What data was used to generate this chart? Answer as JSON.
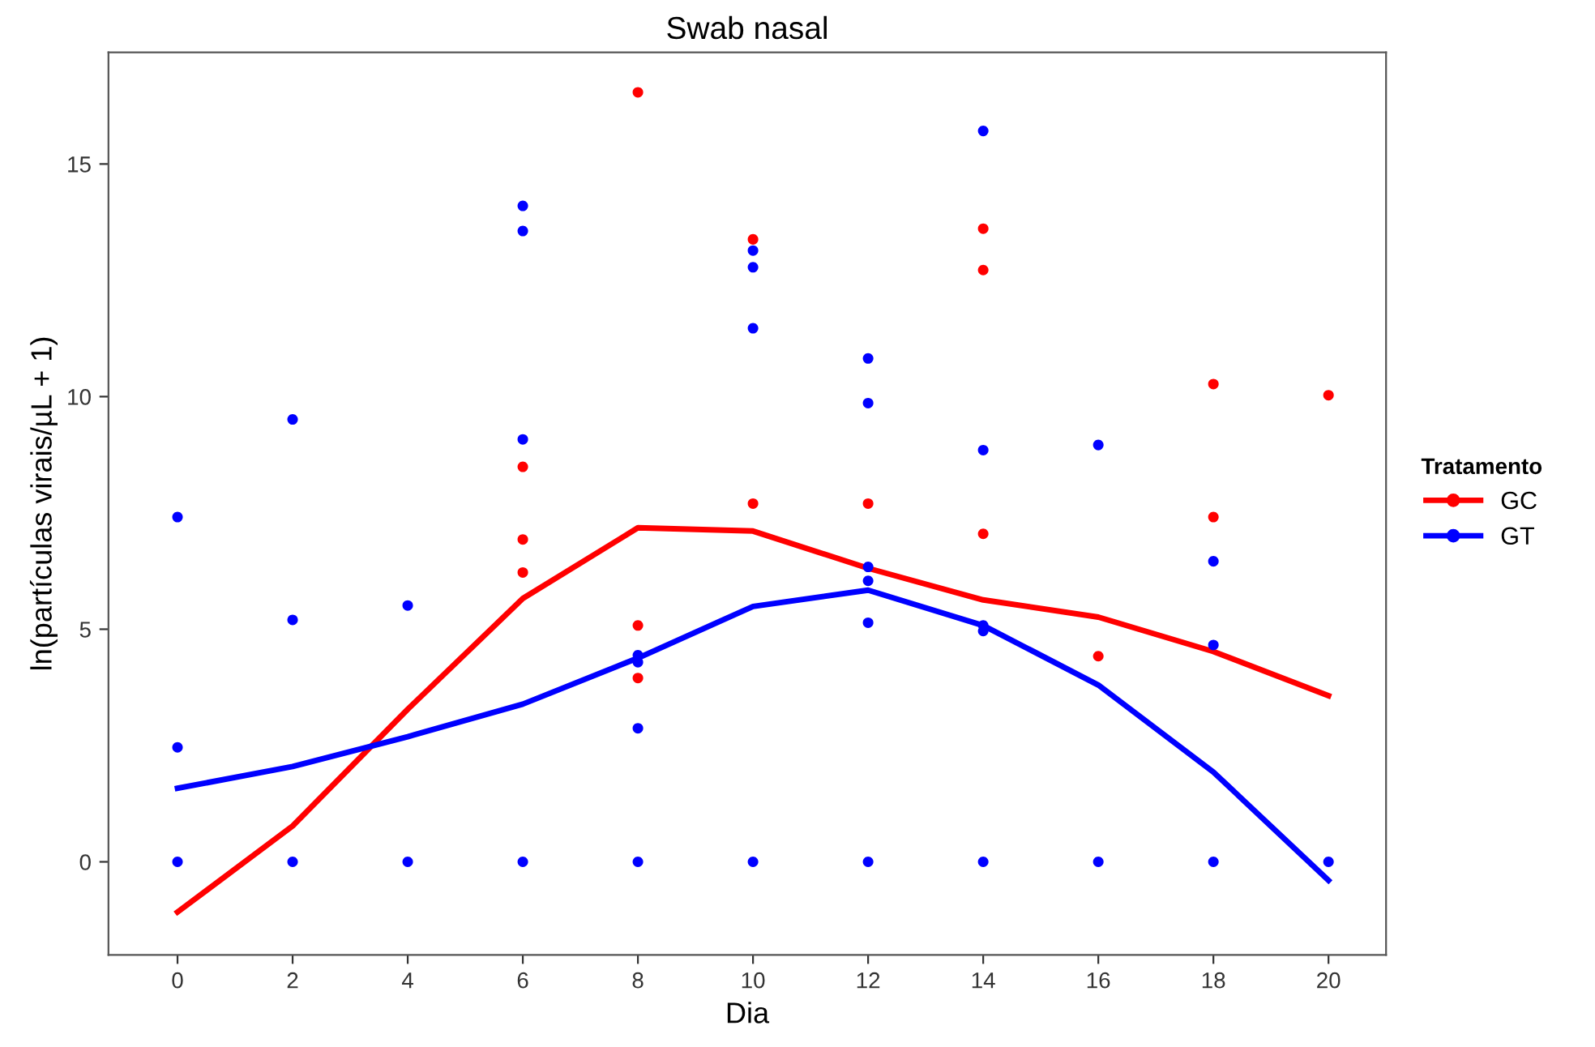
{
  "chart_data": {
    "type": "scatter",
    "title": "Swab nasal",
    "xlabel": "Dia",
    "ylabel": "ln(partículas virais/µL + 1)",
    "legend_title": "Tratamento",
    "legend": "right",
    "grid": false,
    "xlim": [
      -1.2,
      21
    ],
    "ylim": [
      -2.0,
      17.4
    ],
    "xticks": [
      0,
      2,
      4,
      6,
      8,
      10,
      12,
      14,
      16,
      18,
      20
    ],
    "yticks": [
      0,
      5,
      10,
      15
    ],
    "series": [
      {
        "name": "GC",
        "marker": "circle",
        "color": "#ff0000",
        "x": [
          6,
          6,
          6,
          8,
          8,
          8,
          10,
          10,
          12,
          14,
          14,
          14,
          16,
          18,
          18,
          20
        ],
        "values": [
          8.49,
          6.93,
          6.22,
          16.54,
          5.08,
          3.95,
          13.38,
          7.7,
          7.7,
          13.61,
          12.72,
          7.05,
          4.42,
          10.27,
          7.41,
          10.03
        ]
      },
      {
        "name": "GT",
        "marker": "circle",
        "color": "#0000ff",
        "x": [
          0,
          0,
          0,
          2,
          2,
          2,
          4,
          4,
          6,
          6,
          6,
          6,
          8,
          8,
          8,
          8,
          10,
          10,
          10,
          10,
          12,
          12,
          12,
          12,
          12,
          12,
          14,
          14,
          14,
          14,
          14,
          16,
          16,
          18,
          18,
          18,
          20
        ],
        "values": [
          7.41,
          2.46,
          0,
          9.51,
          5.2,
          0,
          5.51,
          0,
          14.1,
          13.56,
          9.08,
          0,
          4.44,
          4.29,
          2.87,
          0,
          13.14,
          12.78,
          11.47,
          0,
          10.82,
          9.86,
          6.34,
          6.04,
          5.14,
          0,
          15.71,
          8.85,
          5.08,
          4.96,
          0,
          8.96,
          0,
          6.46,
          4.66,
          0,
          0
        ]
      },
      {
        "type": "line",
        "marker": "none",
        "color": "#ff0000",
        "x": [
          0,
          2,
          4,
          6,
          8,
          10,
          12,
          14,
          16,
          18,
          20
        ],
        "values": [
          -1.08,
          0.77,
          3.28,
          5.66,
          7.18,
          7.11,
          6.31,
          5.63,
          5.26,
          4.52,
          3.57
        ]
      },
      {
        "type": "line",
        "marker": "none",
        "color": "#0000ff",
        "x": [
          0,
          2,
          4,
          6,
          8,
          10,
          12,
          14,
          16,
          18,
          20
        ],
        "values": [
          1.58,
          2.05,
          2.69,
          3.39,
          4.38,
          5.49,
          5.84,
          5.08,
          3.8,
          1.93,
          -0.4
        ]
      }
    ]
  }
}
